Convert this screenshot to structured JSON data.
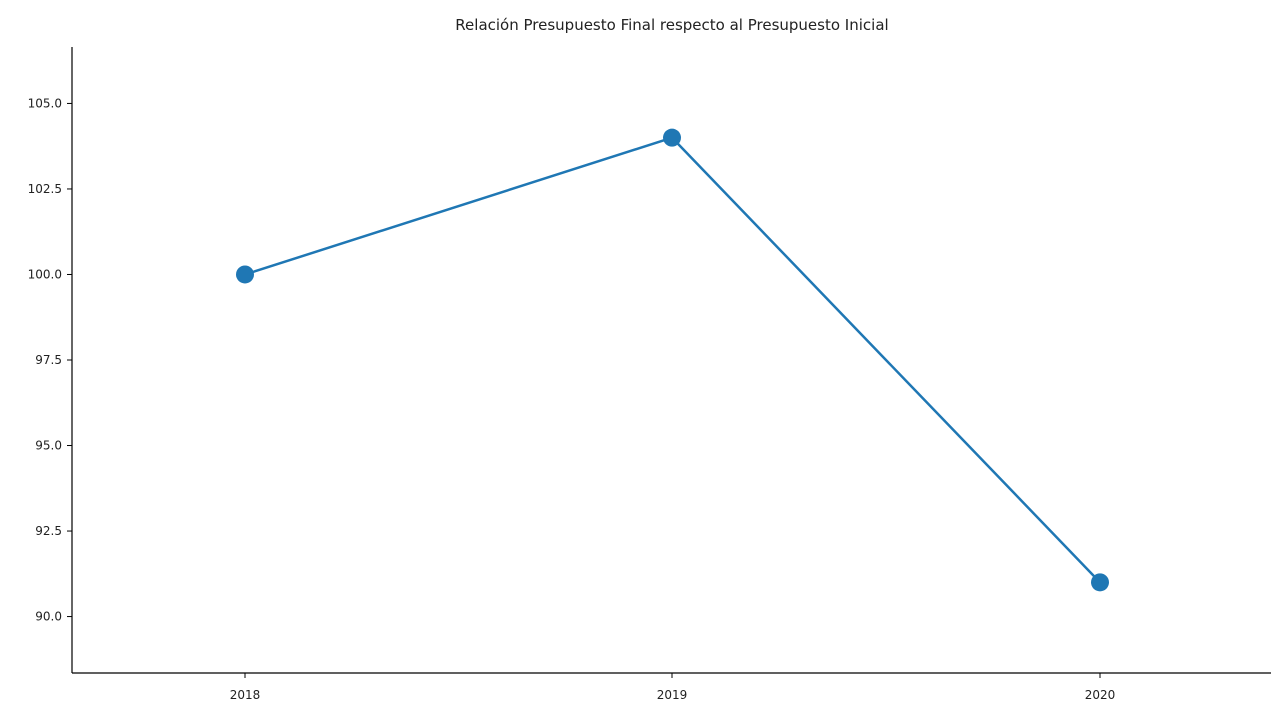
{
  "chart_data": {
    "type": "line",
    "title": "Relación Presupuesto Final respecto al Presupuesto Inicial",
    "xlabel": "",
    "ylabel": "",
    "categories": [
      "2018",
      "2019",
      "2020"
    ],
    "series": [
      {
        "values": [
          100.0,
          104.0,
          91.0
        ],
        "color": "#1f77b4",
        "marker": "circle"
      }
    ],
    "ylim": [
      88.35,
      106.65
    ],
    "yticks": [
      "90.0",
      "92.5",
      "95.0",
      "97.5",
      "100.0",
      "102.5",
      "105.0"
    ],
    "grid": false,
    "legend": "none"
  }
}
